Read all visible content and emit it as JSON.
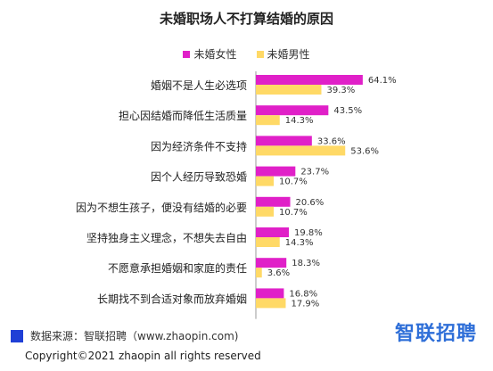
{
  "chart_data": {
    "type": "bar",
    "orientation": "horizontal",
    "title": "未婚职场人不打算结婚的原因",
    "categories": [
      "婚姻不是人生必选项",
      "担心因结婚而降低生活质量",
      "因为经济条件不支持",
      "因个人经历导致恐婚",
      "因为不想生孩子，便没有结婚的必要",
      "坚持独身主义理念，不想失去自由",
      "不愿意承担婚姻和家庭的责任",
      "长期找不到合适对象而放弃婚姻"
    ],
    "series": [
      {
        "name": "未婚女性",
        "color": "#e020c8",
        "values": [
          64.1,
          43.5,
          33.6,
          23.7,
          20.6,
          19.8,
          18.3,
          16.8
        ],
        "labels": [
          "64.1%",
          "43.5%",
          "33.6%",
          "23.7%",
          "20.6%",
          "19.8%",
          "18.3%",
          "16.8%"
        ]
      },
      {
        "name": "未婚男性",
        "color": "#ffd966",
        "values": [
          39.3,
          14.3,
          53.6,
          10.7,
          10.7,
          14.3,
          3.6,
          17.9
        ],
        "labels": [
          "39.3%",
          "14.3%",
          "53.6%",
          "10.7%",
          "10.7%",
          "14.3%",
          "3.6%",
          "17.9%"
        ]
      }
    ],
    "xlim": [
      0,
      100
    ],
    "grid": false,
    "legend_position": "top"
  },
  "footer": {
    "source": "数据来源：智联招聘（www.zhaopin.com)",
    "source_mark_color": "#1f3fd6",
    "brand": "智联招聘",
    "brand_color": "#2f6fd8",
    "copyright": "Copyright©2021 zhaopin all rights reserved"
  }
}
